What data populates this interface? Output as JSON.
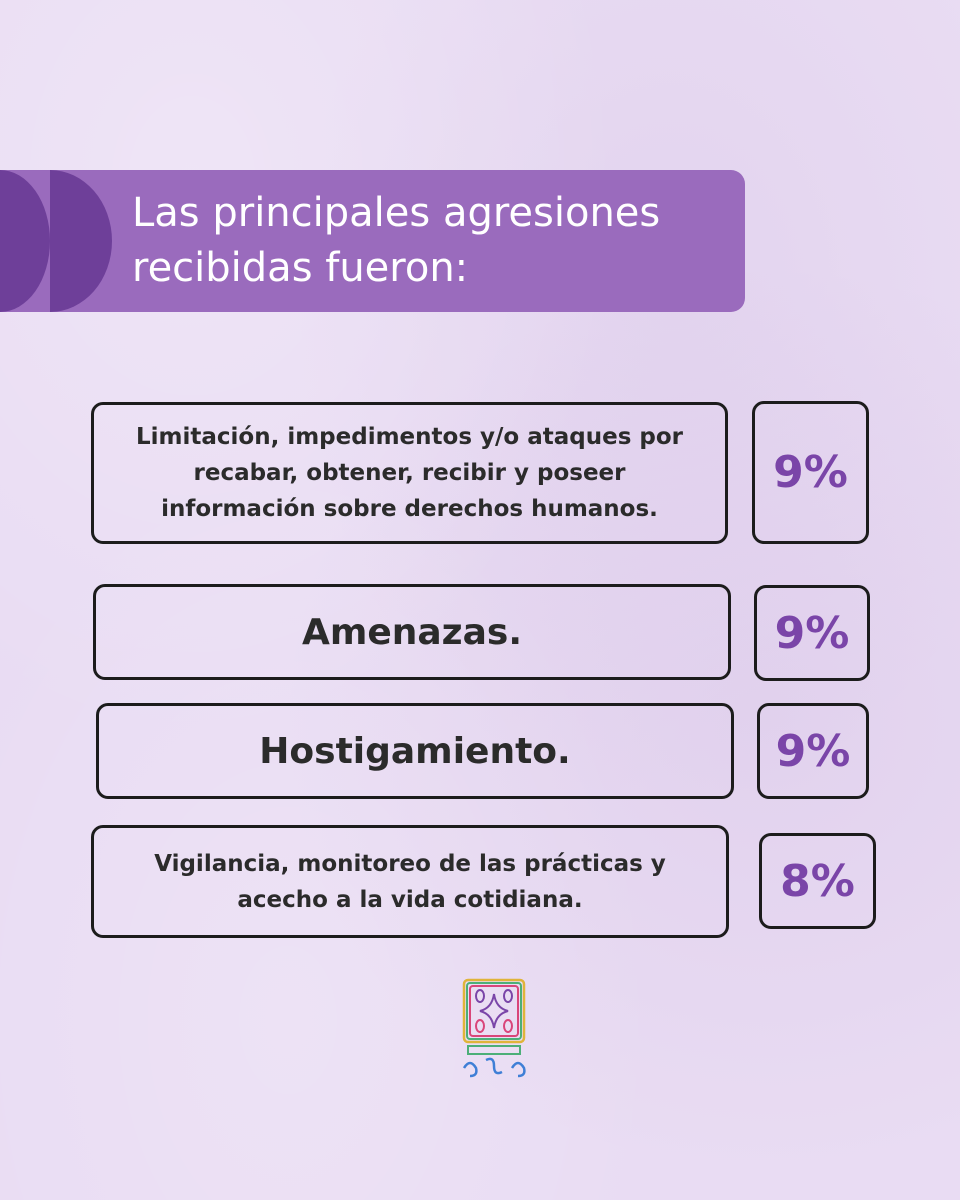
{
  "header": {
    "title": "Las principales agresiones recibidas fueron:"
  },
  "items": [
    {
      "label": "Limitación, impedimentos y/o ataques por recabar, obtener, recibir y poseer información sobre derechos humanos.",
      "percent": "9%"
    },
    {
      "label": "Amenazas.",
      "percent": "9%"
    },
    {
      "label": "Hostigamiento.",
      "percent": "9%"
    },
    {
      "label": "Vigilancia, monitoreo de las prácticas y acecho a la vida cotidiana.",
      "percent": "8%"
    }
  ],
  "colors": {
    "background": "#e9dcf3",
    "banner": "#9a6bbd",
    "banner_deco": "#6e3f99",
    "accent": "#7a45a8",
    "border": "#1c1c1c"
  },
  "icons": {
    "banner_decoration": "half-circles-icon",
    "logo": "embroidered-glyph-logo-icon"
  }
}
